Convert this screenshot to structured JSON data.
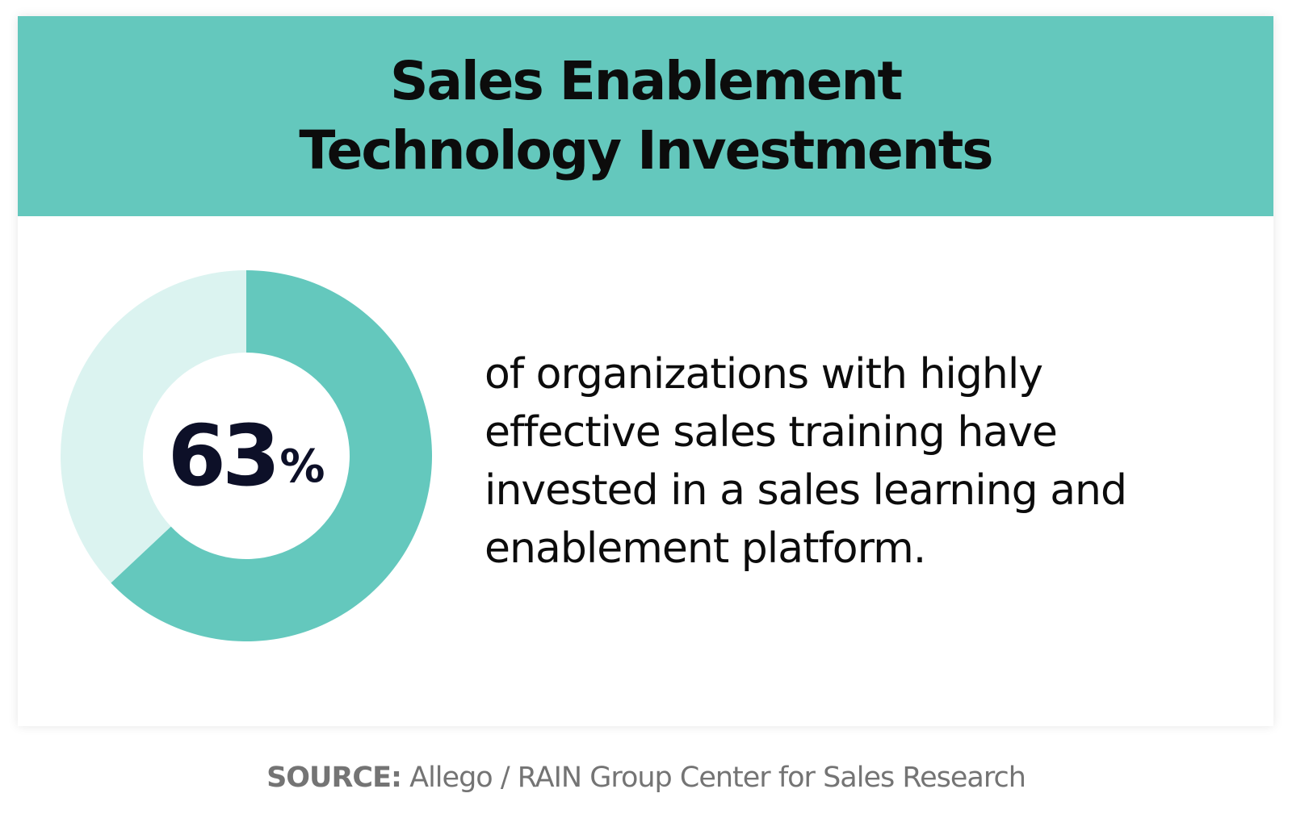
{
  "header": {
    "title_line1": "Sales Enablement",
    "title_line2": "Technology Investments"
  },
  "colors": {
    "accent": "#64c8bd",
    "accent_light": "#dbf3f0",
    "text_dark": "#0c0c0c",
    "stat_text": "#0d1028",
    "source_text": "#747474"
  },
  "chart_data": {
    "type": "pie",
    "donut": true,
    "values": [
      63,
      37
    ],
    "highlight_value": "63",
    "unit": "%"
  },
  "description": {
    "line1": "of organizations with highly",
    "line2": "effective sales training have",
    "line3": "invested in a sales learning and",
    "line4": "enablement platform."
  },
  "source": {
    "label": "SOURCE:",
    "text": " Allego / RAIN Group Center for Sales Research"
  }
}
